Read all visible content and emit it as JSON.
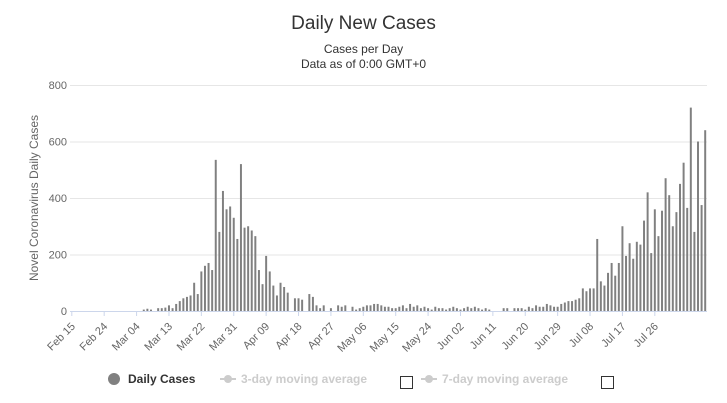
{
  "chart_data": {
    "type": "bar",
    "title": "Daily New Cases",
    "subtitle_line1": "Cases per Day",
    "subtitle_line2": "Data as of 0:00 GMT+0",
    "ylabel": "Novel Coronavirus Daily Cases",
    "xlabel": "",
    "ylim": [
      0,
      800
    ],
    "yticks": [
      0,
      200,
      400,
      600,
      800
    ],
    "grid": true,
    "legend_placement": "bottom",
    "x_tick_labels": [
      "Feb 15",
      "Feb 24",
      "Mar 04",
      "Mar 13",
      "Mar 22",
      "Mar 31",
      "Apr 09",
      "Apr 18",
      "Apr 27",
      "May 06",
      "May 15",
      "May 24",
      "Jun 02",
      "Jun 11",
      "Jun 20",
      "Jun 29",
      "Jul 08",
      "Jul 17",
      "Jul 26"
    ],
    "x_tick_day_index": [
      0,
      9,
      18,
      27,
      36,
      45,
      54,
      63,
      72,
      81,
      90,
      99,
      108,
      117,
      126,
      135,
      144,
      153,
      162
    ],
    "bar_color": "#808080",
    "series": [
      {
        "name": "Daily Cases",
        "values": [
          0,
          0,
          0,
          0,
          0,
          0,
          0,
          0,
          0,
          0,
          0,
          0,
          0,
          0,
          0,
          0,
          0,
          0,
          0,
          0,
          5,
          8,
          5,
          0,
          10,
          10,
          12,
          20,
          10,
          25,
          35,
          45,
          50,
          55,
          100,
          60,
          140,
          160,
          170,
          145,
          535,
          280,
          425,
          360,
          370,
          330,
          255,
          520,
          295,
          300,
          285,
          265,
          145,
          95,
          195,
          140,
          90,
          55,
          100,
          85,
          65,
          0,
          45,
          45,
          40,
          0,
          60,
          50,
          20,
          10,
          20,
          0,
          10,
          0,
          20,
          15,
          20,
          0,
          15,
          5,
          10,
          15,
          20,
          20,
          25,
          25,
          20,
          15,
          15,
          10,
          10,
          15,
          20,
          10,
          25,
          15,
          20,
          10,
          15,
          10,
          5,
          15,
          10,
          10,
          5,
          10,
          15,
          10,
          5,
          10,
          15,
          10,
          15,
          10,
          5,
          10,
          5,
          0,
          0,
          0,
          10,
          10,
          0,
          10,
          10,
          10,
          5,
          15,
          10,
          20,
          15,
          15,
          25,
          20,
          15,
          15,
          25,
          30,
          35,
          35,
          40,
          45,
          80,
          70,
          80,
          80,
          255,
          105,
          90,
          135,
          170,
          125,
          170,
          300,
          195,
          240,
          185,
          245,
          235,
          320,
          420,
          205,
          360,
          265,
          355,
          470,
          410,
          300,
          350,
          450,
          525,
          365,
          720,
          280,
          600,
          375,
          640
        ]
      },
      {
        "name": "3-day moving average",
        "values": []
      },
      {
        "name": "7-day moving average",
        "values": []
      }
    ]
  },
  "legend": {
    "daily_cases": "Daily Cases",
    "ma3": "3-day moving average",
    "ma7": "7-day moving average",
    "active_color": "#333333",
    "inactive_color": "#cccccc",
    "dot_color": "#808080"
  }
}
